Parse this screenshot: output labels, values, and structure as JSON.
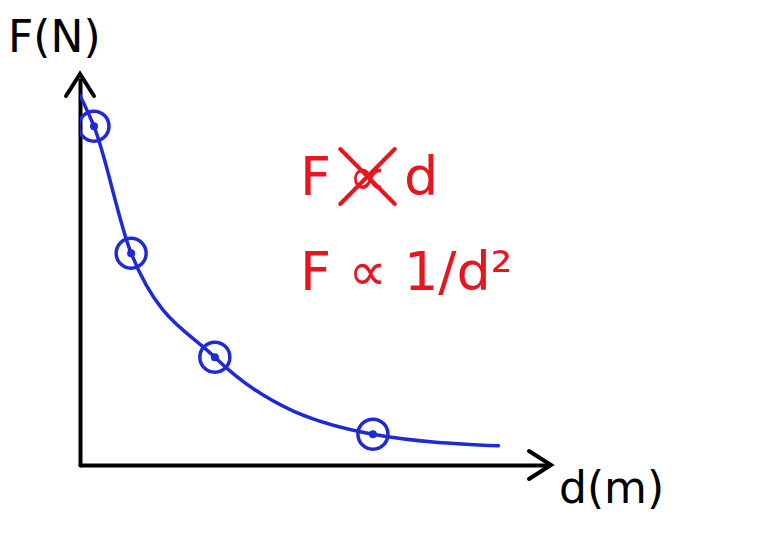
{
  "chart_data": {
    "type": "line",
    "x_label": "d(m)",
    "y_label": "F(N)",
    "annotations": [
      "F ∝ d",
      "F ∝ 1/d²"
    ],
    "xlim": [
      0,
      10
    ],
    "ylim": [
      0,
      10
    ],
    "tick_labels": false,
    "grid": false,
    "series": [
      {
        "color": "#1f2ad6",
        "line_style": "solid",
        "x": [
          0,
          0.3,
          1.1,
          2.9,
          6.3,
          9.0
        ],
        "values": [
          9.6,
          8.8,
          5.5,
          2.8,
          0.8,
          0.5
        ]
      },
      {
        "color": "#1f2ad6",
        "marker": "circle",
        "line_style": "none",
        "x": [
          0.3,
          1.1,
          2.9,
          6.3
        ],
        "values": [
          8.8,
          5.5,
          2.8,
          0.8
        ]
      }
    ]
  }
}
